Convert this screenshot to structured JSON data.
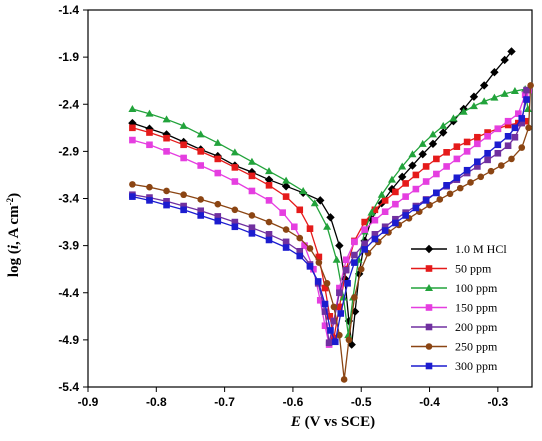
{
  "chart_data": {
    "type": "line",
    "xlabel_italic": "E",
    "xlabel_rest": " (V vs SCE)",
    "ylabel_main": "log (",
    "ylabel_italic": "i",
    "ylabel_unit": ", A cm",
    "ylabel_sup": "-2",
    "ylabel_close": ")",
    "xlim": [
      -0.9,
      -0.25
    ],
    "ylim": [
      -5.4,
      -1.4
    ],
    "xticks": [
      -0.9,
      -0.8,
      -0.7,
      -0.6,
      -0.5,
      -0.4,
      -0.3
    ],
    "xtick_labels": [
      "-0.9",
      "-0.8",
      "-0.7",
      "-0.6",
      "-0.5",
      "-0.4",
      "-0.3"
    ],
    "yticks": [
      -1.4,
      -1.9,
      -2.4,
      -2.9,
      -3.4,
      -3.9,
      -4.4,
      -4.9,
      -5.4
    ],
    "ytick_labels": [
      "-1.4",
      "-1.9",
      "-2.4",
      "-2.9",
      "-3.4",
      "-3.9",
      "-4.4",
      "-4.9",
      "-5.4"
    ],
    "legend_position": "lower-right",
    "grid": false,
    "series": [
      {
        "name": "1.0 M HCl",
        "color": "#000000",
        "marker": "diamond",
        "points": [
          [
            -0.835,
            -2.6
          ],
          [
            -0.81,
            -2.66
          ],
          [
            -0.785,
            -2.72
          ],
          [
            -0.76,
            -2.8
          ],
          [
            -0.735,
            -2.88
          ],
          [
            -0.71,
            -2.95
          ],
          [
            -0.685,
            -3.05
          ],
          [
            -0.66,
            -3.12
          ],
          [
            -0.635,
            -3.2
          ],
          [
            -0.61,
            -3.27
          ],
          [
            -0.585,
            -3.34
          ],
          [
            -0.56,
            -3.42
          ],
          [
            -0.545,
            -3.6
          ],
          [
            -0.532,
            -3.9
          ],
          [
            -0.524,
            -4.25
          ],
          [
            -0.518,
            -4.7
          ],
          [
            -0.514,
            -4.95
          ],
          [
            -0.509,
            -4.6
          ],
          [
            -0.503,
            -4.2
          ],
          [
            -0.495,
            -3.85
          ],
          [
            -0.485,
            -3.62
          ],
          [
            -0.47,
            -3.45
          ],
          [
            -0.455,
            -3.3
          ],
          [
            -0.44,
            -3.17
          ],
          [
            -0.425,
            -3.05
          ],
          [
            -0.41,
            -2.93
          ],
          [
            -0.395,
            -2.82
          ],
          [
            -0.38,
            -2.7
          ],
          [
            -0.365,
            -2.58
          ],
          [
            -0.35,
            -2.45
          ],
          [
            -0.335,
            -2.32
          ],
          [
            -0.32,
            -2.2
          ],
          [
            -0.305,
            -2.06
          ],
          [
            -0.29,
            -1.93
          ],
          [
            -0.28,
            -1.84
          ]
        ]
      },
      {
        "name": "50  ppm",
        "color": "#e51a1a",
        "marker": "square",
        "points": [
          [
            -0.835,
            -2.65
          ],
          [
            -0.81,
            -2.7
          ],
          [
            -0.785,
            -2.76
          ],
          [
            -0.76,
            -2.83
          ],
          [
            -0.735,
            -2.9
          ],
          [
            -0.71,
            -2.98
          ],
          [
            -0.685,
            -3.07
          ],
          [
            -0.66,
            -3.16
          ],
          [
            -0.635,
            -3.26
          ],
          [
            -0.61,
            -3.38
          ],
          [
            -0.59,
            -3.52
          ],
          [
            -0.575,
            -3.72
          ],
          [
            -0.562,
            -4.02
          ],
          [
            -0.553,
            -4.35
          ],
          [
            -0.546,
            -4.65
          ],
          [
            -0.54,
            -4.88
          ],
          [
            -0.532,
            -4.55
          ],
          [
            -0.522,
            -4.15
          ],
          [
            -0.51,
            -3.85
          ],
          [
            -0.495,
            -3.65
          ],
          [
            -0.48,
            -3.52
          ],
          [
            -0.465,
            -3.42
          ],
          [
            -0.45,
            -3.33
          ],
          [
            -0.435,
            -3.24
          ],
          [
            -0.42,
            -3.15
          ],
          [
            -0.405,
            -3.06
          ],
          [
            -0.39,
            -2.98
          ],
          [
            -0.375,
            -2.91
          ],
          [
            -0.36,
            -2.85
          ],
          [
            -0.345,
            -2.8
          ],
          [
            -0.33,
            -2.75
          ],
          [
            -0.315,
            -2.7
          ],
          [
            -0.3,
            -2.66
          ],
          [
            -0.285,
            -2.62
          ],
          [
            -0.27,
            -2.6
          ],
          [
            -0.26,
            -2.58
          ]
        ]
      },
      {
        "name": "100 ppm",
        "color": "#22a33b",
        "marker": "triangle",
        "points": [
          [
            -0.835,
            -2.45
          ],
          [
            -0.81,
            -2.5
          ],
          [
            -0.785,
            -2.56
          ],
          [
            -0.76,
            -2.63
          ],
          [
            -0.735,
            -2.72
          ],
          [
            -0.71,
            -2.81
          ],
          [
            -0.685,
            -2.91
          ],
          [
            -0.66,
            -3.01
          ],
          [
            -0.635,
            -3.11
          ],
          [
            -0.61,
            -3.21
          ],
          [
            -0.585,
            -3.32
          ],
          [
            -0.568,
            -3.45
          ],
          [
            -0.55,
            -3.7
          ],
          [
            -0.536,
            -4.05
          ],
          [
            -0.526,
            -4.45
          ],
          [
            -0.519,
            -4.85
          ],
          [
            -0.512,
            -4.45
          ],
          [
            -0.504,
            -4.05
          ],
          [
            -0.495,
            -3.75
          ],
          [
            -0.485,
            -3.55
          ],
          [
            -0.47,
            -3.36
          ],
          [
            -0.455,
            -3.2
          ],
          [
            -0.44,
            -3.06
          ],
          [
            -0.425,
            -2.93
          ],
          [
            -0.41,
            -2.82
          ],
          [
            -0.395,
            -2.72
          ],
          [
            -0.38,
            -2.63
          ],
          [
            -0.365,
            -2.55
          ],
          [
            -0.35,
            -2.48
          ],
          [
            -0.335,
            -2.42
          ],
          [
            -0.32,
            -2.37
          ],
          [
            -0.305,
            -2.33
          ],
          [
            -0.29,
            -2.29
          ],
          [
            -0.275,
            -2.26
          ],
          [
            -0.26,
            -2.24
          ],
          [
            -0.256,
            -2.45
          ]
        ]
      },
      {
        "name": "150 ppm",
        "color": "#e53ee0",
        "marker": "square",
        "points": [
          [
            -0.835,
            -2.78
          ],
          [
            -0.81,
            -2.83
          ],
          [
            -0.785,
            -2.9
          ],
          [
            -0.76,
            -2.97
          ],
          [
            -0.735,
            -3.05
          ],
          [
            -0.71,
            -3.13
          ],
          [
            -0.685,
            -3.22
          ],
          [
            -0.66,
            -3.32
          ],
          [
            -0.635,
            -3.42
          ],
          [
            -0.615,
            -3.55
          ],
          [
            -0.598,
            -3.7
          ],
          [
            -0.583,
            -3.9
          ],
          [
            -0.57,
            -4.15
          ],
          [
            -0.56,
            -4.48
          ],
          [
            -0.553,
            -4.75
          ],
          [
            -0.547,
            -4.95
          ],
          [
            -0.54,
            -4.7
          ],
          [
            -0.532,
            -4.35
          ],
          [
            -0.522,
            -4.05
          ],
          [
            -0.51,
            -3.86
          ],
          [
            -0.495,
            -3.73
          ],
          [
            -0.48,
            -3.63
          ],
          [
            -0.465,
            -3.54
          ],
          [
            -0.45,
            -3.46
          ],
          [
            -0.435,
            -3.38
          ],
          [
            -0.42,
            -3.3
          ],
          [
            -0.405,
            -3.22
          ],
          [
            -0.39,
            -3.14
          ],
          [
            -0.375,
            -3.06
          ],
          [
            -0.36,
            -2.98
          ],
          [
            -0.345,
            -2.9
          ],
          [
            -0.33,
            -2.82
          ],
          [
            -0.315,
            -2.74
          ],
          [
            -0.3,
            -2.66
          ],
          [
            -0.285,
            -2.58
          ],
          [
            -0.27,
            -2.5
          ],
          [
            -0.26,
            -2.3
          ],
          [
            -0.255,
            -2.25
          ]
        ]
      },
      {
        "name": "200 ppm",
        "color": "#7030a0",
        "marker": "square",
        "points": [
          [
            -0.835,
            -3.36
          ],
          [
            -0.81,
            -3.39
          ],
          [
            -0.785,
            -3.43
          ],
          [
            -0.76,
            -3.48
          ],
          [
            -0.735,
            -3.53
          ],
          [
            -0.71,
            -3.59
          ],
          [
            -0.685,
            -3.65
          ],
          [
            -0.66,
            -3.71
          ],
          [
            -0.635,
            -3.78
          ],
          [
            -0.61,
            -3.86
          ],
          [
            -0.59,
            -3.96
          ],
          [
            -0.575,
            -4.1
          ],
          [
            -0.563,
            -4.3
          ],
          [
            -0.553,
            -4.6
          ],
          [
            -0.547,
            -4.93
          ],
          [
            -0.54,
            -4.7
          ],
          [
            -0.532,
            -4.4
          ],
          [
            -0.522,
            -4.16
          ],
          [
            -0.51,
            -4.0
          ],
          [
            -0.495,
            -3.88
          ],
          [
            -0.48,
            -3.78
          ],
          [
            -0.465,
            -3.7
          ],
          [
            -0.45,
            -3.62
          ],
          [
            -0.435,
            -3.55
          ],
          [
            -0.42,
            -3.48
          ],
          [
            -0.405,
            -3.41
          ],
          [
            -0.39,
            -3.34
          ],
          [
            -0.375,
            -3.27
          ],
          [
            -0.36,
            -3.2
          ],
          [
            -0.345,
            -3.13
          ],
          [
            -0.33,
            -3.06
          ],
          [
            -0.315,
            -2.99
          ],
          [
            -0.3,
            -2.92
          ],
          [
            -0.285,
            -2.84
          ],
          [
            -0.275,
            -2.75
          ],
          [
            -0.265,
            -2.6
          ],
          [
            -0.258,
            -2.25
          ]
        ]
      },
      {
        "name": "250 ppm",
        "color": "#8b4513",
        "marker": "circle",
        "points": [
          [
            -0.835,
            -3.25
          ],
          [
            -0.81,
            -3.28
          ],
          [
            -0.785,
            -3.32
          ],
          [
            -0.76,
            -3.36
          ],
          [
            -0.735,
            -3.41
          ],
          [
            -0.71,
            -3.46
          ],
          [
            -0.685,
            -3.52
          ],
          [
            -0.66,
            -3.58
          ],
          [
            -0.635,
            -3.65
          ],
          [
            -0.61,
            -3.73
          ],
          [
            -0.59,
            -3.82
          ],
          [
            -0.575,
            -3.93
          ],
          [
            -0.562,
            -4.08
          ],
          [
            -0.55,
            -4.3
          ],
          [
            -0.54,
            -4.55
          ],
          [
            -0.532,
            -4.85
          ],
          [
            -0.525,
            -5.32
          ],
          [
            -0.518,
            -4.9
          ],
          [
            -0.51,
            -4.45
          ],
          [
            -0.5,
            -4.15
          ],
          [
            -0.49,
            -3.98
          ],
          [
            -0.475,
            -3.86
          ],
          [
            -0.46,
            -3.76
          ],
          [
            -0.445,
            -3.68
          ],
          [
            -0.43,
            -3.61
          ],
          [
            -0.415,
            -3.54
          ],
          [
            -0.4,
            -3.47
          ],
          [
            -0.385,
            -3.41
          ],
          [
            -0.37,
            -3.35
          ],
          [
            -0.355,
            -3.29
          ],
          [
            -0.34,
            -3.23
          ],
          [
            -0.325,
            -3.17
          ],
          [
            -0.31,
            -3.11
          ],
          [
            -0.295,
            -3.05
          ],
          [
            -0.28,
            -2.98
          ],
          [
            -0.265,
            -2.86
          ],
          [
            -0.255,
            -2.65
          ],
          [
            -0.252,
            -2.2
          ]
        ]
      },
      {
        "name": "300 ppm",
        "color": "#1c1ccf",
        "marker": "square",
        "points": [
          [
            -0.835,
            -3.38
          ],
          [
            -0.81,
            -3.42
          ],
          [
            -0.785,
            -3.47
          ],
          [
            -0.76,
            -3.52
          ],
          [
            -0.735,
            -3.58
          ],
          [
            -0.71,
            -3.64
          ],
          [
            -0.685,
            -3.7
          ],
          [
            -0.66,
            -3.77
          ],
          [
            -0.635,
            -3.84
          ],
          [
            -0.61,
            -3.92
          ],
          [
            -0.59,
            -4.01
          ],
          [
            -0.575,
            -4.12
          ],
          [
            -0.563,
            -4.28
          ],
          [
            -0.553,
            -4.52
          ],
          [
            -0.545,
            -4.8
          ],
          [
            -0.538,
            -4.92
          ],
          [
            -0.53,
            -4.62
          ],
          [
            -0.52,
            -4.3
          ],
          [
            -0.51,
            -4.08
          ],
          [
            -0.495,
            -3.94
          ],
          [
            -0.48,
            -3.83
          ],
          [
            -0.465,
            -3.74
          ],
          [
            -0.45,
            -3.66
          ],
          [
            -0.435,
            -3.58
          ],
          [
            -0.42,
            -3.5
          ],
          [
            -0.405,
            -3.42
          ],
          [
            -0.39,
            -3.34
          ],
          [
            -0.375,
            -3.26
          ],
          [
            -0.36,
            -3.18
          ],
          [
            -0.345,
            -3.1
          ],
          [
            -0.33,
            -3.01
          ],
          [
            -0.315,
            -2.92
          ],
          [
            -0.3,
            -2.83
          ],
          [
            -0.285,
            -2.74
          ],
          [
            -0.275,
            -2.65
          ],
          [
            -0.265,
            -2.55
          ],
          [
            -0.258,
            -2.35
          ]
        ]
      }
    ]
  }
}
